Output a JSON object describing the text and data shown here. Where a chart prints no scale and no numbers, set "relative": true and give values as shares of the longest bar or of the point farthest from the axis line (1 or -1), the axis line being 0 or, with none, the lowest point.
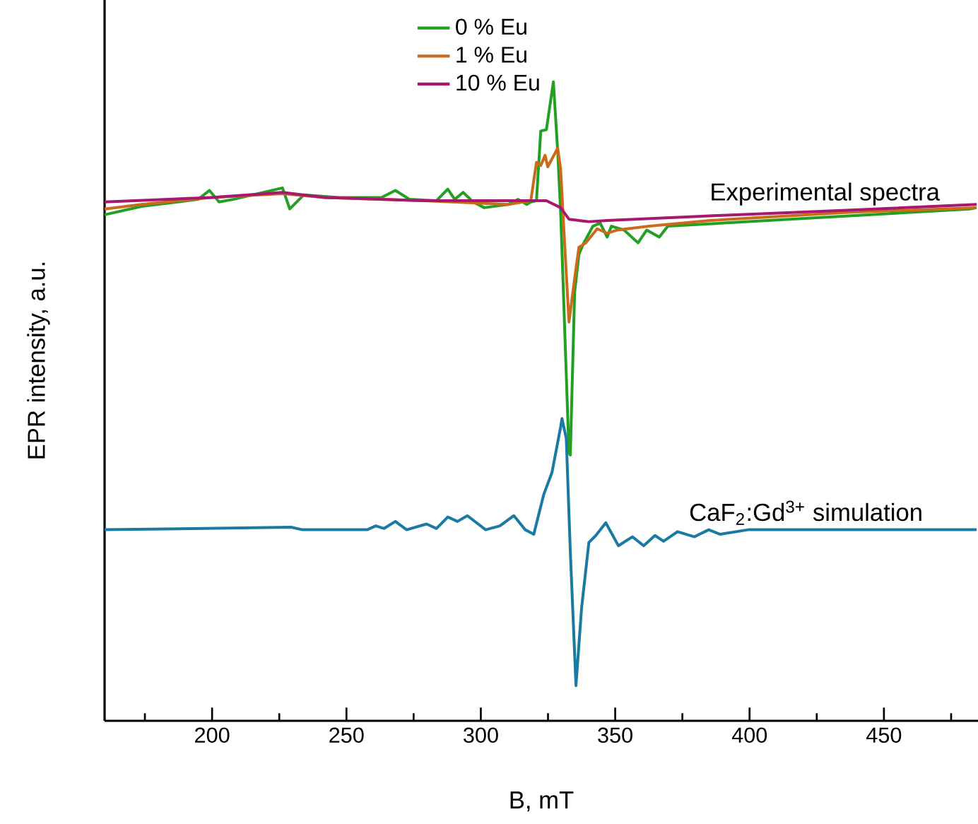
{
  "chart_data": {
    "type": "line",
    "relative": true,
    "xlabel": "B, mT",
    "ylabel": "EPR intensity, a.u.",
    "xlim": [
      160,
      485
    ],
    "xticks": [
      200,
      250,
      300,
      350,
      400,
      450
    ],
    "legend": "top",
    "grid": false,
    "marker": "none",
    "line_style": "solid",
    "annotations": [
      {
        "text": "Experimental spectra",
        "x": 428,
        "y": 0.8
      },
      {
        "text": "CaF$_{2}$:Gd$^{3+}$ simulation",
        "x": 421,
        "y": 0.3
      }
    ],
    "series": [
      {
        "name": "0 % Eu",
        "color": "#22a022",
        "x": [
          160,
          173.8,
          194.8,
          199,
          202.6,
          207.9,
          226.2,
          228.9,
          234.1,
          247.2,
          263,
          268.2,
          273.5,
          283.5,
          287.7,
          290.3,
          293.4,
          297.1,
          301.3,
          310.2,
          313.9,
          317.1,
          318.6,
          320.7,
          322.3,
          324.4,
          327,
          328.6,
          329.7,
          332.8,
          333.3,
          334.9,
          336.5,
          338.1,
          341.7,
          344.4,
          347,
          348.6,
          353.3,
          358.5,
          361.7,
          366.4,
          369.6,
          385.3,
          420.5,
          481.9,
          484.5
        ],
        "values": [
          0.792,
          0.805,
          0.816,
          0.83,
          0.812,
          0.816,
          0.834,
          0.801,
          0.823,
          0.819,
          0.819,
          0.83,
          0.816,
          0.814,
          0.832,
          0.816,
          0.827,
          0.812,
          0.803,
          0.808,
          0.816,
          0.808,
          0.812,
          0.814,
          0.923,
          0.925,
          1,
          0.892,
          0.796,
          0.42,
          0.416,
          0.67,
          0.73,
          0.746,
          0.774,
          0.779,
          0.757,
          0.774,
          0.768,
          0.748,
          0.768,
          0.757,
          0.774,
          null,
          null,
          0.801,
          0.803
        ]
      },
      {
        "name": "1 % Eu",
        "color": "#cc6a1c",
        "x": [
          160,
          173.8,
          199.7,
          226.2,
          242,
          278.7,
          299.7,
          310.2,
          318.6,
          320.7,
          322.3,
          323.9,
          324.9,
          328.6,
          329.7,
          331.2,
          332.8,
          334.9,
          336.5,
          339.1,
          343.3,
          347,
          350.7,
          362.7,
          385.3,
          437.8,
          484.5
        ],
        "values": [
          0.801,
          0.808,
          0.819,
          0.825,
          0.819,
          0.814,
          0.81,
          0.808,
          0.814,
          0.874,
          0.869,
          0.885,
          0.867,
          0.896,
          0.863,
          0.746,
          0.624,
          0.692,
          0.741,
          0.748,
          0.77,
          0.763,
          0.768,
          0.774,
          0.783,
          0.796,
          0.803
        ]
      },
      {
        "name": "10 % Eu",
        "color": "#a8186e",
        "x": [
          160,
          199.7,
          226.2,
          242,
          278.7,
          318.6,
          324.4,
          329.7,
          332.8,
          340.2,
          347,
          383.7,
          436.2,
          484.5
        ],
        "values": [
          0.812,
          0.819,
          0.827,
          0.819,
          0.814,
          0.814,
          0.814,
          0.803,
          0.785,
          0.781,
          0.783,
          0.79,
          0.799,
          0.808
        ]
      },
      {
        "color": "#1a7aa2",
        "x": [
          160,
          229.4,
          233.6,
          257.7,
          260.9,
          264,
          268.2,
          272.4,
          279.8,
          283.5,
          287.7,
          291.3,
          295,
          301.8,
          307.1,
          312.3,
          316.5,
          319.7,
          323.4,
          326.5,
          329.7,
          330.2,
          331.8,
          333.3,
          335.4,
          337.5,
          340.2,
          342.8,
          346.5,
          351.2,
          356.4,
          360.6,
          364.8,
          368,
          373.2,
          379.5,
          384.8,
          389,
          399.5,
          484.5
        ],
        "values": [
          0.299,
          0.303,
          0.299,
          0.299,
          0.305,
          0.301,
          0.312,
          0.299,
          0.308,
          0.301,
          0.319,
          0.312,
          0.321,
          0.299,
          0.305,
          0.321,
          0.299,
          0.292,
          0.354,
          0.389,
          0.46,
          0.473,
          0.442,
          0.265,
          0.055,
          0.177,
          0.279,
          0.29,
          0.31,
          0.274,
          0.288,
          0.274,
          0.29,
          0.281,
          0.296,
          0.288,
          0.299,
          0.292,
          0.299,
          0.299
        ]
      }
    ]
  }
}
